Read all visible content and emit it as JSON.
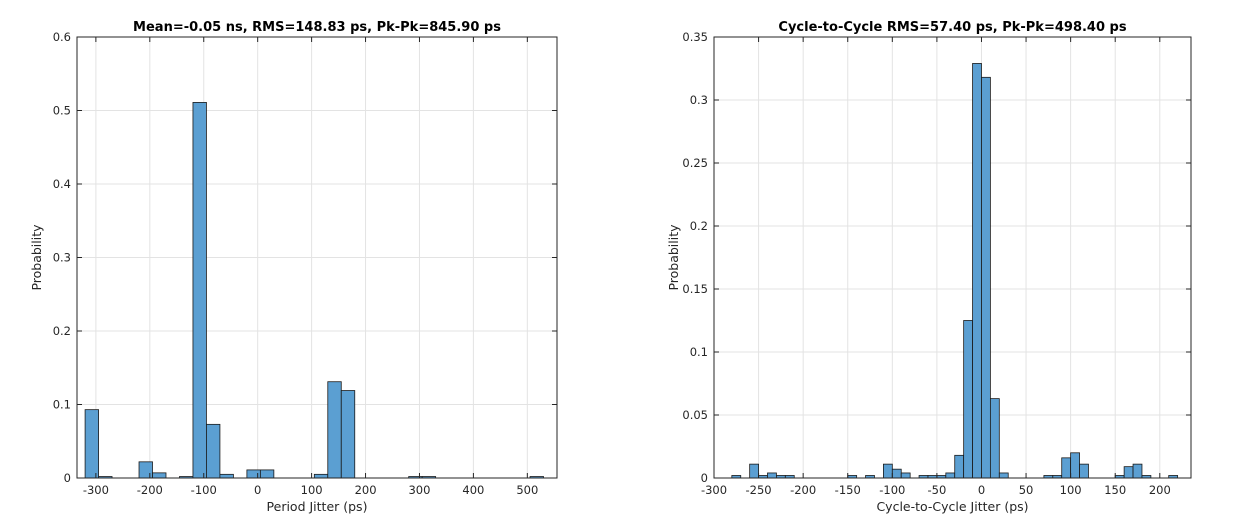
{
  "chart_data": [
    {
      "type": "bar",
      "histogram": true,
      "title": "Mean=-0.05 ns, RMS=148.83 ps, Pk-Pk=845.90 ps",
      "xlabel": "Period Jitter (ps)",
      "ylabel": "Probability",
      "xlim": [
        -335,
        555
      ],
      "ylim": [
        0,
        0.6
      ],
      "xticks": [
        -300,
        -200,
        -100,
        0,
        100,
        200,
        300,
        400,
        500
      ],
      "xtick_labels": [
        "-300",
        "-200",
        "-100",
        "0",
        "100",
        "200",
        "300",
        "400",
        "500"
      ],
      "yticks": [
        0,
        0.1,
        0.2,
        0.3,
        0.4,
        0.5,
        0.6
      ],
      "ytick_labels": [
        "0",
        "0.1",
        "0.2",
        "0.3",
        "0.4",
        "0.5",
        "0.6"
      ],
      "grid": true,
      "color": "#5b9fd2",
      "bins": [
        {
          "x0": -320,
          "x1": -295,
          "value": 0.093
        },
        {
          "x0": -295,
          "x1": -270,
          "value": 0.002
        },
        {
          "x0": -220,
          "x1": -195,
          "value": 0.022
        },
        {
          "x0": -195,
          "x1": -170,
          "value": 0.007
        },
        {
          "x0": -145,
          "x1": -120,
          "value": 0.002
        },
        {
          "x0": -120,
          "x1": -95,
          "value": 0.511
        },
        {
          "x0": -95,
          "x1": -70,
          "value": 0.073
        },
        {
          "x0": -70,
          "x1": -45,
          "value": 0.005
        },
        {
          "x0": -20,
          "x1": 5,
          "value": 0.011
        },
        {
          "x0": 5,
          "x1": 30,
          "value": 0.011
        },
        {
          "x0": 105,
          "x1": 130,
          "value": 0.005
        },
        {
          "x0": 130,
          "x1": 155,
          "value": 0.131
        },
        {
          "x0": 155,
          "x1": 180,
          "value": 0.119
        },
        {
          "x0": 280,
          "x1": 305,
          "value": 0.002
        },
        {
          "x0": 305,
          "x1": 330,
          "value": 0.002
        },
        {
          "x0": 505,
          "x1": 530,
          "value": 0.002
        }
      ]
    },
    {
      "type": "bar",
      "histogram": true,
      "title": "Cycle-to-Cycle RMS=57.40 ps, Pk-Pk=498.40 ps",
      "xlabel": "Cycle-to-Cycle Jitter (ps)",
      "ylabel": "Probability",
      "xlim": [
        -300,
        235
      ],
      "ylim": [
        0,
        0.35
      ],
      "xticks": [
        -300,
        -250,
        -200,
        -150,
        -100,
        -50,
        0,
        50,
        100,
        150,
        200
      ],
      "xtick_labels": [
        "-300",
        "-250",
        "-200",
        "-150",
        "-100",
        "-50",
        "0",
        "50",
        "100",
        "150",
        "200"
      ],
      "yticks": [
        0,
        0.05,
        0.1,
        0.15,
        0.2,
        0.25,
        0.3,
        0.35
      ],
      "ytick_labels": [
        "0",
        "0.05",
        "0.1",
        "0.15",
        "0.2",
        "0.25",
        "0.3",
        "0.35"
      ],
      "grid": true,
      "color": "#5b9fd2",
      "bins": [
        {
          "x0": -280,
          "x1": -270,
          "value": 0.002
        },
        {
          "x0": -260,
          "x1": -250,
          "value": 0.011
        },
        {
          "x0": -250,
          "x1": -240,
          "value": 0.002
        },
        {
          "x0": -240,
          "x1": -230,
          "value": 0.004
        },
        {
          "x0": -230,
          "x1": -220,
          "value": 0.002
        },
        {
          "x0": -220,
          "x1": -210,
          "value": 0.002
        },
        {
          "x0": -150,
          "x1": -140,
          "value": 0.002
        },
        {
          "x0": -130,
          "x1": -120,
          "value": 0.002
        },
        {
          "x0": -110,
          "x1": -100,
          "value": 0.011
        },
        {
          "x0": -100,
          "x1": -90,
          "value": 0.007
        },
        {
          "x0": -90,
          "x1": -80,
          "value": 0.004
        },
        {
          "x0": -70,
          "x1": -60,
          "value": 0.002
        },
        {
          "x0": -60,
          "x1": -50,
          "value": 0.002
        },
        {
          "x0": -50,
          "x1": -40,
          "value": 0.002
        },
        {
          "x0": -40,
          "x1": -30,
          "value": 0.004
        },
        {
          "x0": -30,
          "x1": -20,
          "value": 0.018
        },
        {
          "x0": -20,
          "x1": -10,
          "value": 0.125
        },
        {
          "x0": -10,
          "x1": 0,
          "value": 0.329
        },
        {
          "x0": 0,
          "x1": 10,
          "value": 0.318
        },
        {
          "x0": 10,
          "x1": 20,
          "value": 0.063
        },
        {
          "x0": 20,
          "x1": 30,
          "value": 0.004
        },
        {
          "x0": 70,
          "x1": 80,
          "value": 0.002
        },
        {
          "x0": 80,
          "x1": 90,
          "value": 0.002
        },
        {
          "x0": 90,
          "x1": 100,
          "value": 0.016
        },
        {
          "x0": 100,
          "x1": 110,
          "value": 0.02
        },
        {
          "x0": 110,
          "x1": 120,
          "value": 0.011
        },
        {
          "x0": 150,
          "x1": 160,
          "value": 0.002
        },
        {
          "x0": 160,
          "x1": 170,
          "value": 0.009
        },
        {
          "x0": 170,
          "x1": 180,
          "value": 0.011
        },
        {
          "x0": 180,
          "x1": 190,
          "value": 0.002
        },
        {
          "x0": 210,
          "x1": 220,
          "value": 0.002
        }
      ]
    }
  ]
}
